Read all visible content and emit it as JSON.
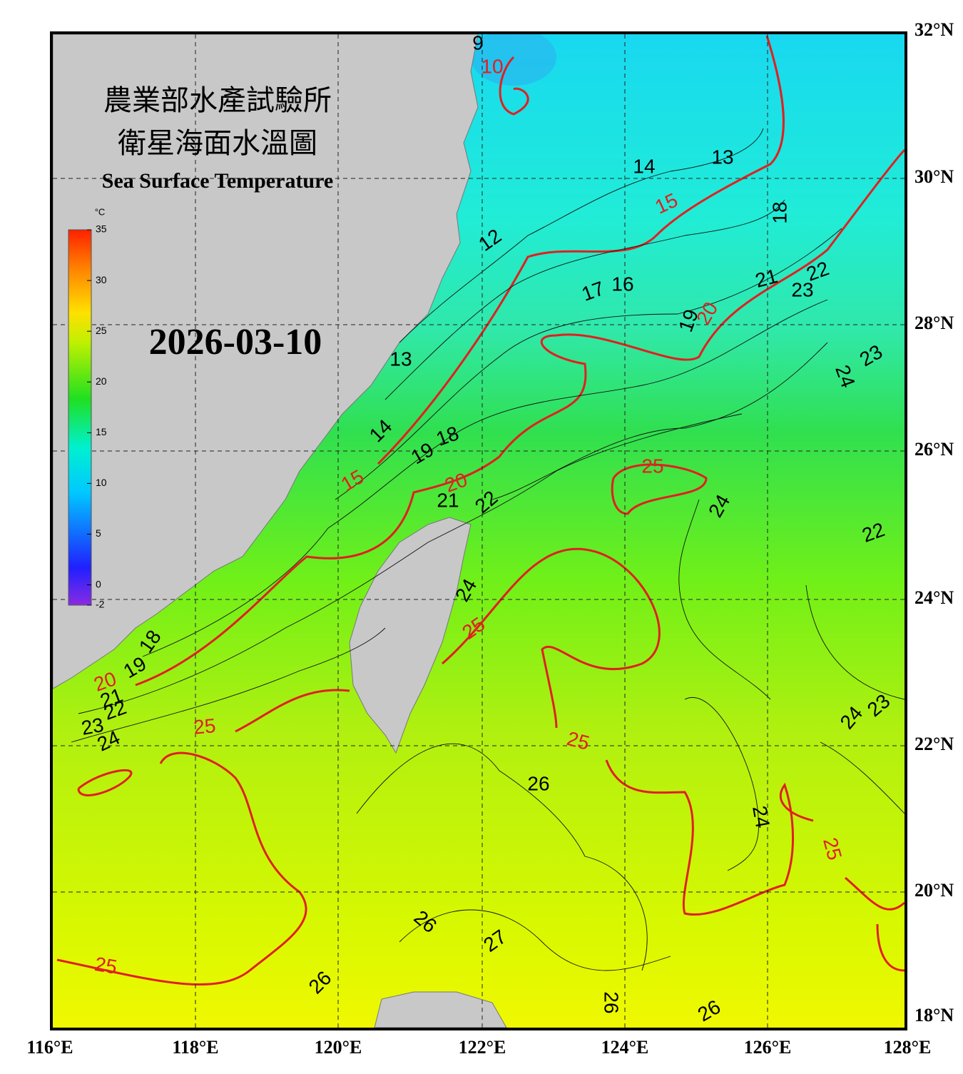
{
  "title_lines": [
    "農業部水產試驗所",
    "衛星海面水溫圖"
  ],
  "subtitle": "Sea Surface Temperature",
  "date": "2026-03-10",
  "colorbar": {
    "unit": "°C",
    "range": [
      -2,
      35
    ],
    "ticks": [
      35,
      30,
      25,
      20,
      15,
      10,
      5,
      0,
      -2
    ]
  },
  "lon_labels": [
    "116°E",
    "118°E",
    "120°E",
    "122°E",
    "124°E",
    "126°E",
    "128°E"
  ],
  "lat_labels": [
    "32°N",
    "30°N",
    "28°N",
    "26°N",
    "24°N",
    "22°N",
    "20°N",
    "18°N"
  ],
  "contour_labels": [
    "10",
    "9",
    "13",
    "14",
    "15",
    "18",
    "12",
    "16",
    "17",
    "21",
    "22",
    "23",
    "19",
    "20",
    "13",
    "24",
    "23",
    "14",
    "19",
    "18",
    "15",
    "20",
    "21",
    "22",
    "25",
    "24",
    "22",
    "24",
    "25",
    "18",
    "19",
    "20",
    "21",
    "22",
    "23",
    "24",
    "25",
    "25",
    "24",
    "23",
    "26",
    "24",
    "25",
    "26",
    "27",
    "25",
    "26",
    "26",
    "26"
  ]
}
